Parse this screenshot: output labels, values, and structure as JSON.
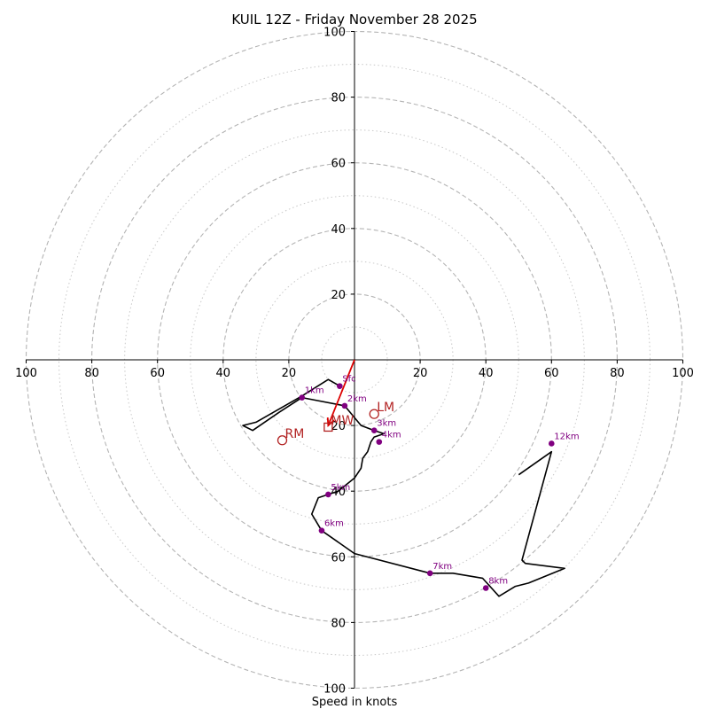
{
  "chart_data": {
    "type": "hodograph",
    "title": "KUIL 12Z - Friday November 28 2025",
    "xlabel": "Speed in knots",
    "range": [
      -100,
      100
    ],
    "major_rings": [
      20,
      40,
      60,
      80,
      100
    ],
    "minor_rings": [
      10,
      30,
      50,
      70,
      90
    ],
    "x_ticks": [
      {
        "v": -100,
        "label": "100"
      },
      {
        "v": -80,
        "label": "80"
      },
      {
        "v": -60,
        "label": "60"
      },
      {
        "v": -40,
        "label": "40"
      },
      {
        "v": -20,
        "label": "20"
      },
      {
        "v": 20,
        "label": "20"
      },
      {
        "v": 40,
        "label": "40"
      },
      {
        "v": 60,
        "label": "60"
      },
      {
        "v": 80,
        "label": "80"
      },
      {
        "v": 100,
        "label": "100"
      }
    ],
    "y_ticks": [
      {
        "v": 100,
        "label": "100"
      },
      {
        "v": 80,
        "label": "80"
      },
      {
        "v": 60,
        "label": "60"
      },
      {
        "v": 40,
        "label": "40"
      },
      {
        "v": 20,
        "label": "20"
      },
      {
        "v": -20,
        "label": "20"
      },
      {
        "v": -40,
        "label": "40"
      },
      {
        "v": -60,
        "label": "60"
      },
      {
        "v": -80,
        "label": "80"
      },
      {
        "v": -100,
        "label": "100"
      }
    ],
    "hodograph_line": {
      "color": "#000000",
      "points": [
        [
          -4.5,
          -8
        ],
        [
          -8,
          -6
        ],
        [
          -16,
          -11
        ],
        [
          -30,
          -19
        ],
        [
          -34,
          -20
        ],
        [
          -31,
          -21.5
        ],
        [
          -23,
          -16
        ],
        [
          -16,
          -11.5
        ],
        [
          -3,
          -14
        ],
        [
          2,
          -20
        ],
        [
          6,
          -21.5
        ],
        [
          9,
          -22.5
        ],
        [
          6,
          -23.5
        ],
        [
          5,
          -25
        ],
        [
          4,
          -28
        ],
        [
          2.5,
          -30
        ],
        [
          2,
          -33
        ],
        [
          0,
          -36
        ],
        [
          -5,
          -40
        ],
        [
          -8,
          -41
        ],
        [
          -11,
          -42
        ],
        [
          -13,
          -47
        ],
        [
          -10,
          -52
        ],
        [
          0,
          -59
        ],
        [
          23,
          -65
        ],
        [
          30,
          -65
        ],
        [
          39,
          -66.5
        ],
        [
          44,
          -72
        ],
        [
          49,
          -69
        ],
        [
          53,
          -68
        ],
        [
          64,
          -63.5
        ],
        [
          52,
          -62
        ],
        [
          51,
          -61
        ],
        [
          60,
          -28
        ],
        [
          50,
          -35
        ]
      ]
    },
    "height_markers": [
      {
        "label": "Sfc",
        "u": -4.5,
        "v": -8
      },
      {
        "label": "1km",
        "u": -16,
        "v": -11.5
      },
      {
        "label": "2km",
        "u": -3,
        "v": -14
      },
      {
        "label": "3km",
        "u": 6,
        "v": -21.5
      },
      {
        "label": "4km",
        "u": 7.5,
        "v": -25
      },
      {
        "label": "5km",
        "u": -8,
        "v": -41
      },
      {
        "label": "6km",
        "u": -10,
        "v": -52
      },
      {
        "label": "7km",
        "u": 23,
        "v": -65
      },
      {
        "label": "8km",
        "u": 40,
        "v": -69.5
      },
      {
        "label": "12km",
        "u": 60,
        "v": -25.5
      }
    ],
    "marker_color": "#800080",
    "storm_motions": [
      {
        "label": "LM",
        "u": 6,
        "v": -16.5,
        "symbol": "circle"
      },
      {
        "label": "RM",
        "u": -22,
        "v": -24.5,
        "symbol": "circle"
      },
      {
        "label": "MW",
        "u": -8,
        "v": -20.5,
        "symbol": "square"
      }
    ],
    "storm_color": "#b22222",
    "shear_vector": {
      "from": [
        0,
        0
      ],
      "to": [
        -8,
        -20
      ],
      "color": "#dd0000"
    }
  }
}
